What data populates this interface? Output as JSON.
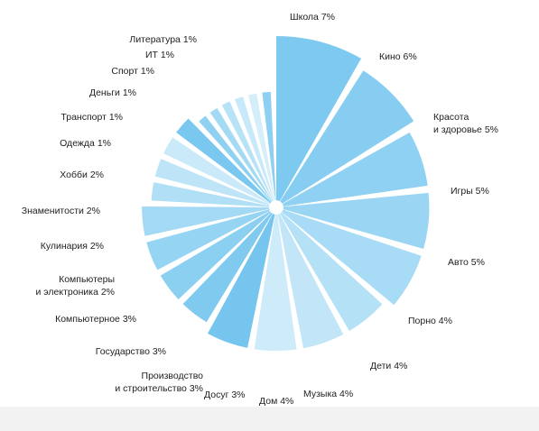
{
  "chart_data": {
    "type": "pie",
    "style": "exploded radial bars",
    "title": "",
    "slices": [
      {
        "name": "Школа",
        "value": 7,
        "label": [
          "Школа 7%"
        ],
        "color": "#7ec9ef"
      },
      {
        "name": "Кино",
        "value": 6,
        "label": [
          "Кино 6%"
        ],
        "color": "#87cdf1"
      },
      {
        "name": "Красота и здоровье",
        "value": 5,
        "label": [
          "Красота",
          "и здоровье 5%"
        ],
        "color": "#8fd1f2"
      },
      {
        "name": "Игры",
        "value": 5,
        "label": [
          "Игры 5%"
        ],
        "color": "#9ad6f3"
      },
      {
        "name": "Авто",
        "value": 5,
        "label": [
          "Авто 5%"
        ],
        "color": "#a8dbf5"
      },
      {
        "name": "Порно",
        "value": 4,
        "label": [
          "Порно 4%"
        ],
        "color": "#b4e1f6"
      },
      {
        "name": "Дети",
        "value": 4,
        "label": [
          "Дети 4%"
        ],
        "color": "#c2e6f8"
      },
      {
        "name": "Музыка",
        "value": 4,
        "label": [
          "Музыка 4%"
        ],
        "color": "#cdebf9"
      },
      {
        "name": "Дом",
        "value": 4,
        "label": [
          "Дом 4%"
        ],
        "color": "#76c5ee"
      },
      {
        "name": "Досуг",
        "value": 3,
        "label": [
          "Досуг 3%"
        ],
        "color": "#80caf0"
      },
      {
        "name": "Производство и строительство",
        "value": 3,
        "label": [
          "Производство",
          "и строительство 3%"
        ],
        "color": "#8bcff1"
      },
      {
        "name": "Государство",
        "value": 3,
        "label": [
          "Государство 3%"
        ],
        "color": "#96d4f3"
      },
      {
        "name": "Компьютерное",
        "value": 3,
        "label": [
          "Компьютерное 3%"
        ],
        "color": "#a3d9f4"
      },
      {
        "name": "Компьютеры и электроника",
        "value": 2,
        "label": [
          "Компьютеры",
          "и электроника 2%"
        ],
        "color": "#b0dff6"
      },
      {
        "name": "Кулинария",
        "value": 2,
        "label": [
          "Кулинария 2%"
        ],
        "color": "#bde4f7"
      },
      {
        "name": "Знаменитости",
        "value": 2,
        "label": [
          "Знаменитости 2%"
        ],
        "color": "#cbeaf9"
      },
      {
        "name": "Хобби",
        "value": 2,
        "label": [
          "Хобби 2%"
        ],
        "color": "#7ac7ef"
      },
      {
        "name": "Одежда",
        "value": 1,
        "label": [
          "Одежда 1%"
        ],
        "color": "#90d1f2"
      },
      {
        "name": "Транспорт",
        "value": 1,
        "label": [
          "Транспорт 1%"
        ],
        "color": "#a5daf4"
      },
      {
        "name": "Деньги",
        "value": 1,
        "label": [
          "Деньги 1%"
        ],
        "color": "#b8e2f6"
      },
      {
        "name": "Спорт",
        "value": 1,
        "label": [
          "Спорт 1%"
        ],
        "color": "#c8e9f9"
      },
      {
        "name": "ИТ",
        "value": 1,
        "label": [
          "ИТ 1%"
        ],
        "color": "#d4eefa"
      },
      {
        "name": "Литература",
        "value": 1,
        "label": [
          "Литература 1%"
        ],
        "color": "#8dd0f2"
      }
    ]
  }
}
